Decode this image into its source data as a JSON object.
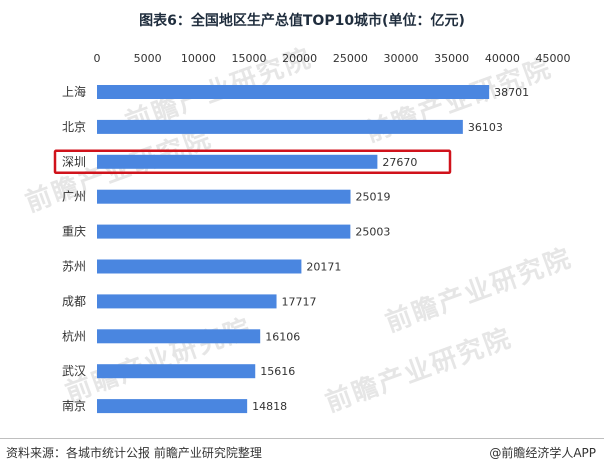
{
  "title": "图表6：全国地区生产总值TOP10城市(单位：亿元)",
  "source": "资料来源：各城市统计公报 前瞻产业研究院整理",
  "brand": "@前瞻经济学人APP",
  "watermark_text": "前瞻产业研究院",
  "colors": {
    "bar": "#4a86e0",
    "highlight": "#d0121b",
    "axis_text": "#333333"
  },
  "chart_data": {
    "type": "bar",
    "orientation": "horizontal",
    "title": "图表6：全国地区生产总值TOP10城市(单位：亿元)",
    "categories": [
      "上海",
      "北京",
      "深圳",
      "广州",
      "重庆",
      "苏州",
      "成都",
      "杭州",
      "武汉",
      "南京"
    ],
    "values": [
      38701,
      36103,
      27670,
      25019,
      25003,
      20171,
      17717,
      16106,
      15616,
      14818
    ],
    "xlim": [
      0,
      45000
    ],
    "ticks": [
      0,
      5000,
      10000,
      15000,
      20000,
      25000,
      30000,
      35000,
      40000,
      45000
    ],
    "grid": false,
    "highlighted_category": "深圳"
  }
}
